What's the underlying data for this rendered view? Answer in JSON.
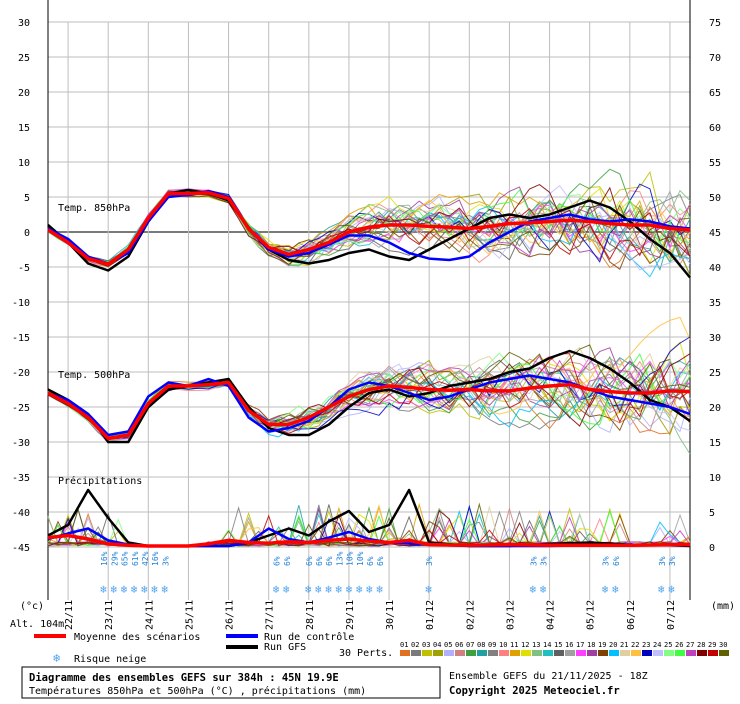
{
  "chart_data": {
    "type": "line",
    "left_ticks": [
      "30",
      "25",
      "20",
      "15",
      "10",
      "5",
      "0",
      "-5",
      "-10",
      "-15",
      "-20",
      "-25",
      "-30",
      "-35",
      "-40",
      "-45"
    ],
    "right_ticks": [
      "75",
      "70",
      "65",
      "60",
      "55",
      "50",
      "45",
      "40",
      "35",
      "30",
      "25",
      "20",
      "15",
      "10",
      "5",
      "0"
    ],
    "left_unit": "(°c)",
    "right_unit": "(mm)",
    "altitude": "Alt. 104m",
    "panel_labels": [
      "Temp. 850hPa",
      "Temp. 500hPa",
      "Précipitations"
    ],
    "dates": [
      "22/11",
      "23/11",
      "24/11",
      "25/11",
      "26/11",
      "27/11",
      "28/11",
      "29/11",
      "30/11",
      "01/12",
      "02/12",
      "03/12",
      "04/12",
      "05/12",
      "06/12",
      "07/12"
    ],
    "snow_labels": [
      {
        "day": 22.9,
        "pcts": [
          "16%",
          "29%",
          "65%",
          "61%",
          "42%",
          "16%",
          "3%"
        ]
      },
      {
        "day": 27.2,
        "pcts": [
          "6%",
          "6%"
        ]
      },
      {
        "day": 28.0,
        "pcts": [
          "6%",
          "6%",
          "6%",
          "13%",
          "10%",
          "10%",
          "6%",
          "6%"
        ]
      },
      {
        "day": 31.0,
        "pcts": [
          "3%"
        ]
      },
      {
        "day": 33.6,
        "pcts": [
          "3%",
          "3%"
        ]
      },
      {
        "day": 35.4,
        "pcts": [
          "3%",
          "6%"
        ]
      },
      {
        "day": 36.8,
        "pcts": [
          "3%",
          "3%"
        ]
      }
    ],
    "series": [
      {
        "name": "Moyenne des scénarios",
        "color": "#ff0000",
        "temp850": [
          [
            21.5,
            0.3
          ],
          [
            22,
            -1.5
          ],
          [
            22.5,
            -3.8
          ],
          [
            23,
            -4.6
          ],
          [
            23.5,
            -2.5
          ],
          [
            24,
            2.0
          ],
          [
            24.5,
            5.5
          ],
          [
            25,
            5.5
          ],
          [
            25.5,
            5.6
          ],
          [
            26,
            4.8
          ],
          [
            26.5,
            0.5
          ],
          [
            27,
            -2.2
          ],
          [
            27.5,
            -3.2
          ],
          [
            28,
            -2.5
          ],
          [
            28.5,
            -1.5
          ],
          [
            29,
            0.0
          ],
          [
            29.5,
            0.7
          ],
          [
            30,
            1.0
          ],
          [
            30.5,
            1.0
          ],
          [
            31,
            0.8
          ],
          [
            31.5,
            0.7
          ],
          [
            32,
            0.5
          ],
          [
            32.5,
            0.8
          ],
          [
            33,
            1.2
          ],
          [
            33.5,
            1.3
          ],
          [
            34,
            1.5
          ],
          [
            34.5,
            1.7
          ],
          [
            35,
            1.5
          ],
          [
            35.5,
            1.2
          ],
          [
            36,
            1.0
          ],
          [
            36.5,
            1.0
          ],
          [
            37,
            0.5
          ],
          [
            37.5,
            0.3
          ]
        ],
        "temp500": [
          [
            21.5,
            -23
          ],
          [
            22,
            -24.5
          ],
          [
            22.5,
            -26.5
          ],
          [
            23,
            -29.5
          ],
          [
            23.5,
            -29
          ],
          [
            24,
            -24.5
          ],
          [
            24.5,
            -22
          ],
          [
            25,
            -22
          ],
          [
            25.5,
            -21.8
          ],
          [
            26,
            -21.5
          ],
          [
            26.5,
            -25.5
          ],
          [
            27,
            -27.5
          ],
          [
            27.5,
            -27.5
          ],
          [
            28,
            -26.5
          ],
          [
            28.5,
            -25.0
          ],
          [
            29,
            -23.5
          ],
          [
            29.5,
            -22.5
          ],
          [
            30,
            -22.0
          ],
          [
            30.5,
            -22.2
          ],
          [
            31,
            -22.5
          ],
          [
            31.5,
            -22.6
          ],
          [
            32,
            -22.5
          ],
          [
            32.5,
            -22.7
          ],
          [
            33,
            -22.7
          ],
          [
            33.5,
            -22.3
          ],
          [
            34,
            -22.0
          ],
          [
            34.5,
            -21.8
          ],
          [
            35,
            -22.5
          ],
          [
            35.5,
            -22.8
          ],
          [
            36,
            -23.0
          ],
          [
            36.5,
            -23.0
          ],
          [
            37,
            -22.7
          ],
          [
            37.5,
            -22.8
          ]
        ],
        "precip": [
          [
            21.5,
            1.2
          ],
          [
            22,
            1.5
          ],
          [
            22.5,
            1.0
          ],
          [
            23,
            0.3
          ],
          [
            23.5,
            0.1
          ],
          [
            24,
            0
          ],
          [
            25,
            0
          ],
          [
            25.5,
            0.3
          ],
          [
            26,
            0.8
          ],
          [
            26.5,
            0.5
          ],
          [
            27,
            0.4
          ],
          [
            27.5,
            0.6
          ],
          [
            28,
            0.5
          ],
          [
            28.5,
            0.8
          ],
          [
            29,
            1.0
          ],
          [
            29.5,
            0.7
          ],
          [
            30,
            0.5
          ],
          [
            30.5,
            0.8
          ],
          [
            31,
            0.2
          ],
          [
            32,
            0.1
          ],
          [
            33,
            0.2
          ],
          [
            34,
            0.1
          ],
          [
            35,
            0.1
          ],
          [
            36,
            0.1
          ],
          [
            37,
            0.2
          ],
          [
            37.5,
            0.2
          ]
        ]
      },
      {
        "name": "Run de contrôle",
        "color": "#0000ff",
        "temp850": [
          [
            21.5,
            0.5
          ],
          [
            22,
            -1.0
          ],
          [
            22.5,
            -3.5
          ],
          [
            23,
            -4.5
          ],
          [
            23.5,
            -3.0
          ],
          [
            24,
            1.5
          ],
          [
            24.5,
            5.0
          ],
          [
            25,
            5.3
          ],
          [
            25.5,
            5.8
          ],
          [
            26,
            5.0
          ],
          [
            26.5,
            0.5
          ],
          [
            27,
            -2.5
          ],
          [
            27.5,
            -3.5
          ],
          [
            28,
            -3.0
          ],
          [
            28.5,
            -1.8
          ],
          [
            29,
            -0.5
          ],
          [
            29.5,
            -0.5
          ],
          [
            30,
            -1.5
          ],
          [
            30.5,
            -3.0
          ],
          [
            31,
            -3.8
          ],
          [
            31.5,
            -4.0
          ],
          [
            32,
            -3.5
          ],
          [
            32.5,
            -1.5
          ],
          [
            33,
            0.0
          ],
          [
            33.5,
            1.5
          ],
          [
            34,
            2.0
          ],
          [
            34.5,
            2.5
          ],
          [
            35,
            1.8
          ],
          [
            35.5,
            1.5
          ],
          [
            36,
            1.8
          ],
          [
            36.5,
            1.5
          ],
          [
            37,
            0.8
          ],
          [
            37.5,
            0.5
          ]
        ],
        "temp500": [
          [
            21.5,
            -23
          ],
          [
            22,
            -24
          ],
          [
            22.5,
            -26
          ],
          [
            23,
            -29
          ],
          [
            23.5,
            -28.5
          ],
          [
            24,
            -23.5
          ],
          [
            24.5,
            -21.5
          ],
          [
            25,
            -22
          ],
          [
            25.5,
            -21
          ],
          [
            26,
            -22
          ],
          [
            26.5,
            -26.5
          ],
          [
            27,
            -28.5
          ],
          [
            27.5,
            -28.0
          ],
          [
            28,
            -27.0
          ],
          [
            28.5,
            -25.0
          ],
          [
            29,
            -22.5
          ],
          [
            29.5,
            -21.5
          ],
          [
            30,
            -22.0
          ],
          [
            30.5,
            -23.0
          ],
          [
            31,
            -24.0
          ],
          [
            31.5,
            -23.5
          ],
          [
            32,
            -22.5
          ],
          [
            32.5,
            -21.5
          ],
          [
            33,
            -21.0
          ],
          [
            33.5,
            -20.5
          ],
          [
            34,
            -21.0
          ],
          [
            34.5,
            -21.5
          ],
          [
            35,
            -22.5
          ],
          [
            35.5,
            -23.5
          ],
          [
            36,
            -24.0
          ],
          [
            36.5,
            -24.5
          ],
          [
            37,
            -25.0
          ],
          [
            37.5,
            -26.0
          ]
        ],
        "precip": [
          [
            21.5,
            1.0
          ],
          [
            22,
            1.8
          ],
          [
            22.5,
            2.5
          ],
          [
            23,
            0.8
          ],
          [
            23.5,
            0.2
          ],
          [
            24,
            0
          ],
          [
            26,
            0
          ],
          [
            26.5,
            0.5
          ],
          [
            27,
            2.5
          ],
          [
            27.5,
            1.0
          ],
          [
            28,
            0.5
          ],
          [
            28.5,
            1.2
          ],
          [
            29,
            2.0
          ],
          [
            29.5,
            1.0
          ],
          [
            30,
            0.5
          ],
          [
            31,
            0.2
          ],
          [
            32,
            0
          ],
          [
            34,
            0
          ],
          [
            35,
            0.1
          ],
          [
            36,
            0.1
          ],
          [
            37.5,
            0.1
          ]
        ]
      },
      {
        "name": "Run GFS",
        "color": "#000000",
        "temp850": [
          [
            21.5,
            1.0
          ],
          [
            22,
            -1.5
          ],
          [
            22.5,
            -4.5
          ],
          [
            23,
            -5.5
          ],
          [
            23.5,
            -3.5
          ],
          [
            24,
            1.5
          ],
          [
            24.5,
            5.5
          ],
          [
            25,
            6.0
          ],
          [
            25.5,
            5.5
          ],
          [
            26,
            4.5
          ],
          [
            26.5,
            0.5
          ],
          [
            27,
            -2.5
          ],
          [
            27.5,
            -4.0
          ],
          [
            28,
            -4.5
          ],
          [
            28.5,
            -4.0
          ],
          [
            29,
            -3.0
          ],
          [
            29.5,
            -2.5
          ],
          [
            30,
            -3.5
          ],
          [
            30.5,
            -4.0
          ],
          [
            31,
            -2.5
          ],
          [
            31.5,
            -1.0
          ],
          [
            32,
            0.5
          ],
          [
            32.5,
            2.0
          ],
          [
            33,
            2.5
          ],
          [
            33.5,
            2.0
          ],
          [
            34,
            2.5
          ],
          [
            34.5,
            3.5
          ],
          [
            35,
            4.5
          ],
          [
            35.5,
            3.5
          ],
          [
            36,
            1.5
          ],
          [
            36.5,
            -1.0
          ],
          [
            37,
            -3.0
          ],
          [
            37.5,
            -6.5
          ]
        ],
        "temp500": [
          [
            21.5,
            -22.5
          ],
          [
            22,
            -24
          ],
          [
            22.5,
            -26
          ],
          [
            23,
            -30
          ],
          [
            23.5,
            -30
          ],
          [
            24,
            -25
          ],
          [
            24.5,
            -22.5
          ],
          [
            25,
            -22
          ],
          [
            25.5,
            -21.5
          ],
          [
            26,
            -21
          ],
          [
            26.5,
            -25
          ],
          [
            27,
            -28
          ],
          [
            27.5,
            -29.0
          ],
          [
            28,
            -29.0
          ],
          [
            28.5,
            -27.5
          ],
          [
            29,
            -25.0
          ],
          [
            29.5,
            -23.0
          ],
          [
            30,
            -22.5
          ],
          [
            30.5,
            -23.5
          ],
          [
            31,
            -23.0
          ],
          [
            31.5,
            -22.0
          ],
          [
            32,
            -21.5
          ],
          [
            32.5,
            -21.0
          ],
          [
            33,
            -20.0
          ],
          [
            33.5,
            -19.5
          ],
          [
            34,
            -18.0
          ],
          [
            34.5,
            -17.0
          ],
          [
            35,
            -18.0
          ],
          [
            35.5,
            -19.5
          ],
          [
            36,
            -21.5
          ],
          [
            36.5,
            -24.0
          ],
          [
            37,
            -25.0
          ],
          [
            37.5,
            -27.0
          ]
        ],
        "precip": [
          [
            21.5,
            1.5
          ],
          [
            22,
            3.0
          ],
          [
            22.5,
            8.0
          ],
          [
            23,
            4.0
          ],
          [
            23.5,
            0.5
          ],
          [
            24,
            0
          ],
          [
            26,
            0
          ],
          [
            26.5,
            0.5
          ],
          [
            27,
            1.5
          ],
          [
            27.5,
            2.5
          ],
          [
            28,
            1.5
          ],
          [
            28.5,
            3.5
          ],
          [
            29,
            5.0
          ],
          [
            29.5,
            2.0
          ],
          [
            30,
            3.0
          ],
          [
            30.5,
            8.0
          ],
          [
            31,
            0.5
          ],
          [
            32,
            0
          ],
          [
            33,
            0
          ],
          [
            34,
            0.3
          ],
          [
            35,
            0.5
          ],
          [
            36,
            0.2
          ],
          [
            37,
            0.1
          ],
          [
            37.5,
            0
          ]
        ]
      }
    ],
    "legend": {
      "mean_label": "Moyenne des scénarios",
      "control_label": "Run de contrôle",
      "gfs_label": "Run GFS",
      "snow_label": "Risque neige",
      "perts_label": "30 Perts.",
      "pert_numbers": [
        "01",
        "02",
        "03",
        "04",
        "05",
        "06",
        "07",
        "08",
        "09",
        "10",
        "11",
        "12",
        "13",
        "14",
        "15",
        "16",
        "17",
        "18",
        "19",
        "20",
        "21",
        "22",
        "23",
        "24",
        "25",
        "26",
        "27",
        "28",
        "29",
        "30"
      ],
      "pert_colors": [
        "#e07020",
        "#7a7a7a",
        "#c0c000",
        "#a0a000",
        "#b0b0ff",
        "#d08080",
        "#40a040",
        "#20a0a0",
        "#808080",
        "#ff8080",
        "#e0a000",
        "#e0e000",
        "#80c080",
        "#20c0c0",
        "#606060",
        "#a0a0a0",
        "#ff40ff",
        "#a040a0",
        "#804000",
        "#00c0ff",
        "#e0d0a0",
        "#ffc040",
        "#0000c0",
        "#c0c0ff",
        "#80ff80",
        "#40ff40",
        "#c040c0",
        "#800000",
        "#c00000",
        "#606000"
      ]
    },
    "footer": {
      "title": "Diagramme des ensembles GEFS sur 384h : 45N 19.9E",
      "subtitle": "Températures 850hPa et 500hPa (°C) , précipitations (mm)",
      "ensemble": "Ensemble GEFS du 21/11/2025 - 18Z",
      "copyright": "Copyright 2025 Meteociel.fr"
    }
  }
}
